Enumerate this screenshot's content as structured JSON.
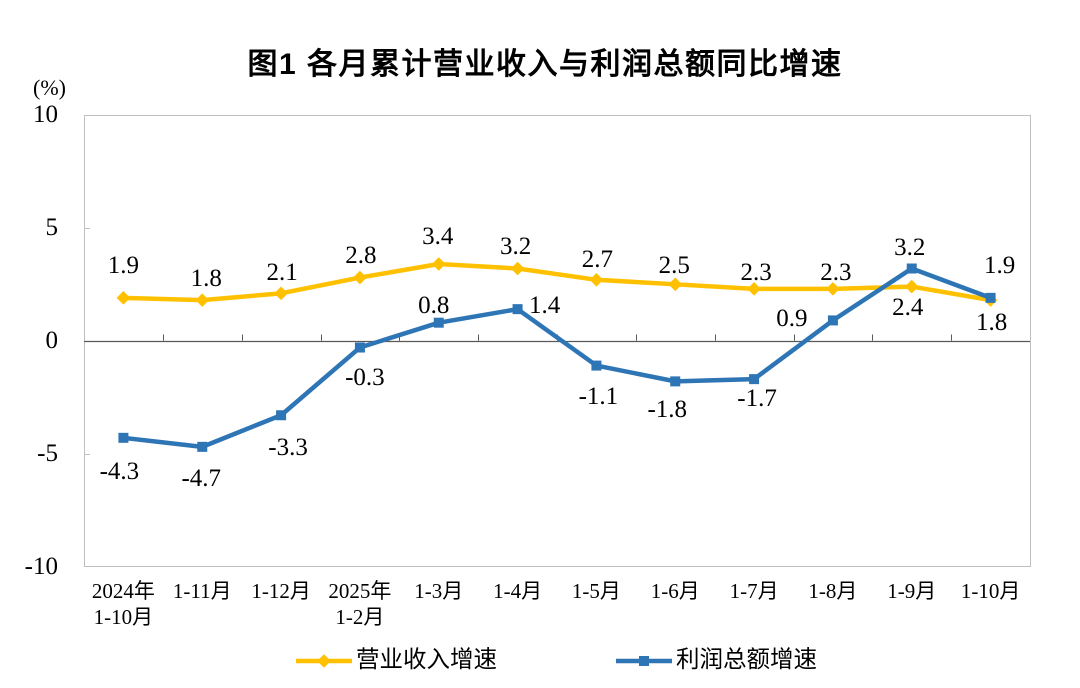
{
  "page": {
    "background": "#FFFFFF"
  },
  "chart_data": {
    "type": "line",
    "title": "图1  各月累计营业收入与利润总额同比增速",
    "unit_label": "(%)",
    "y_axis": {
      "min": -10,
      "max": 10,
      "tick_step": 5,
      "ticks": [
        10,
        5,
        0,
        -5,
        -10
      ],
      "tick_labels": [
        "10",
        "5",
        "0",
        "-5",
        "-10"
      ]
    },
    "x_axis": {
      "categories": [
        {
          "lines": [
            "2024年",
            "1-10月"
          ]
        },
        {
          "lines": [
            "1-11月"
          ]
        },
        {
          "lines": [
            "1-12月"
          ]
        },
        {
          "lines": [
            "2025年",
            "1-2月"
          ]
        },
        {
          "lines": [
            "1-3月"
          ]
        },
        {
          "lines": [
            "1-4月"
          ]
        },
        {
          "lines": [
            "1-5月"
          ]
        },
        {
          "lines": [
            "1-6月"
          ]
        },
        {
          "lines": [
            "1-7月"
          ]
        },
        {
          "lines": [
            "1-8月"
          ]
        },
        {
          "lines": [
            "1-9月"
          ]
        },
        {
          "lines": [
            "1-10月"
          ]
        }
      ]
    },
    "grid": "off",
    "legend_position": "bottom",
    "axis_color": "#BFBFBF",
    "zero_line_color": "#595959",
    "series": [
      {
        "name": "营业收入增速",
        "color": "#FFC000",
        "marker": "diamond",
        "values": [
          1.9,
          1.8,
          2.1,
          2.8,
          3.4,
          3.2,
          2.7,
          2.5,
          2.3,
          2.3,
          2.4,
          1.8
        ],
        "labels": [
          "1.9",
          "1.8",
          "2.1",
          "2.8",
          "3.4",
          "3.2",
          "2.7",
          "2.5",
          "2.3",
          "2.3",
          "2.4",
          "1.8"
        ],
        "label_offsets": [
          [
            0,
            -32
          ],
          [
            4,
            -22
          ],
          [
            1,
            -21
          ],
          [
            1,
            -22
          ],
          [
            -1,
            -27
          ],
          [
            -2,
            -22
          ],
          [
            1,
            -20
          ],
          [
            -1,
            -19
          ],
          [
            2,
            -16
          ],
          [
            3,
            -16
          ],
          [
            -4,
            21
          ],
          [
            1,
            22
          ]
        ]
      },
      {
        "name": "利润总额增速",
        "color": "#2E75B6",
        "marker": "square",
        "values": [
          -4.3,
          -4.7,
          -3.3,
          -0.3,
          0.8,
          1.4,
          -1.1,
          -1.8,
          -1.7,
          0.9,
          3.2,
          1.9
        ],
        "labels": [
          "-4.3",
          "-4.7",
          "-3.3",
          "-0.3",
          "0.8",
          "1.4",
          "-1.1",
          "-1.8",
          "-1.7",
          "0.9",
          "3.2",
          "1.9"
        ],
        "label_offsets": [
          [
            -4,
            34
          ],
          [
            -1,
            32
          ],
          [
            7,
            32
          ],
          [
            5,
            30
          ],
          [
            -5,
            -17
          ],
          [
            27,
            -4
          ],
          [
            2,
            31
          ],
          [
            -8,
            28
          ],
          [
            3,
            19
          ],
          [
            -41,
            -2
          ],
          [
            -2,
            -21
          ],
          [
            9,
            -32
          ]
        ]
      }
    ]
  }
}
